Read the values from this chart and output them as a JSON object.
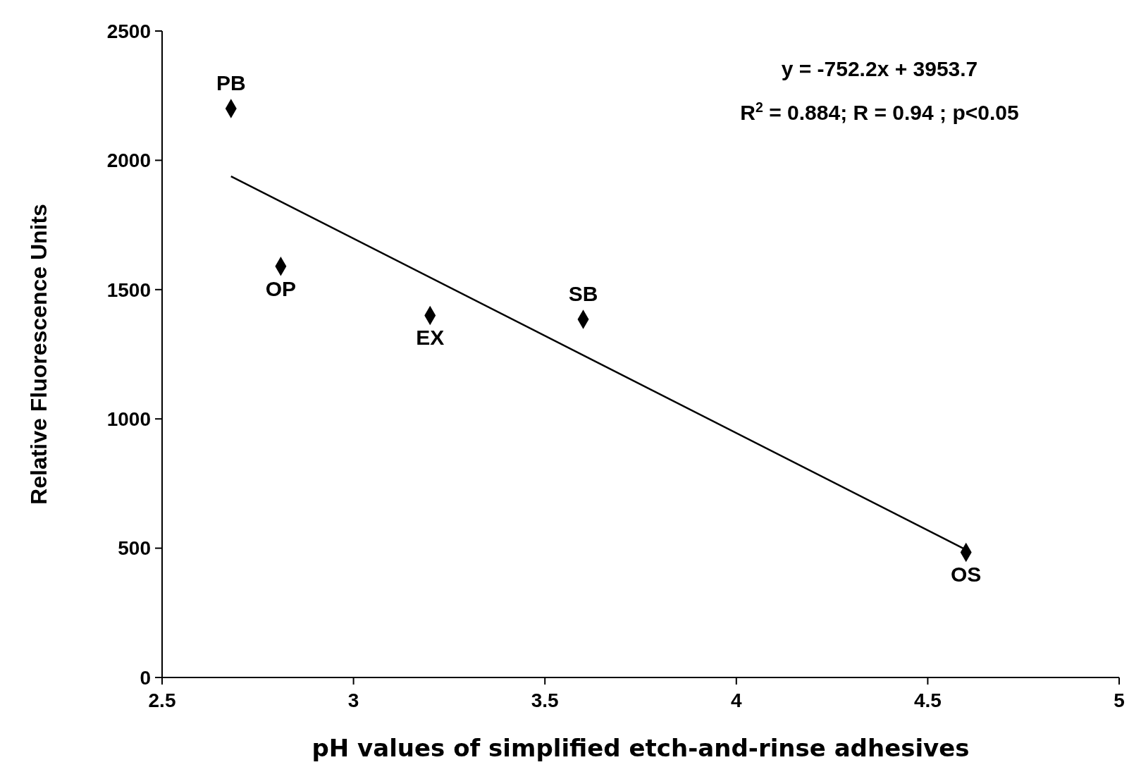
{
  "chart_data": {
    "type": "scatter",
    "xlabel": "pH values of simplified etch-and-rinse adhesives",
    "ylabel": "Relative Fluorescence Units",
    "series": [
      {
        "color": "#000000",
        "x": [
          2.68,
          2.81,
          3.2,
          3.6,
          4.6
        ],
        "values": [
          2200,
          1590,
          1400,
          1385,
          484
        ],
        "marker": "diamond"
      },
      {
        "type": "line",
        "color": "#000000",
        "x": [
          2.68,
          4.6
        ],
        "values": [
          1938,
          494
        ],
        "marker": "none"
      }
    ],
    "xlim": [
      2.5,
      5
    ],
    "xticks": [
      2.5,
      3,
      3.5,
      4,
      4.5,
      5
    ],
    "ylim": [
      0,
      2500
    ],
    "yticks": [
      0,
      500,
      1000,
      1500,
      2000,
      2500
    ],
    "grid": false,
    "annotations": [
      "y = -752.2x + 3953.7",
      "R$^{2}$ = 0.884; R = 0.94 ; p<0.05",
      {
        "text": "PB",
        "x": 2.68,
        "y": 2200
      },
      {
        "text": "OP",
        "x": 2.81,
        "y": 1590
      },
      {
        "text": "EX",
        "x": 3.2,
        "y": 1400
      },
      {
        "text": "SB",
        "x": 3.6,
        "y": 1385
      },
      {
        "text": "OS",
        "x": 4.6,
        "y": 484
      }
    ]
  }
}
